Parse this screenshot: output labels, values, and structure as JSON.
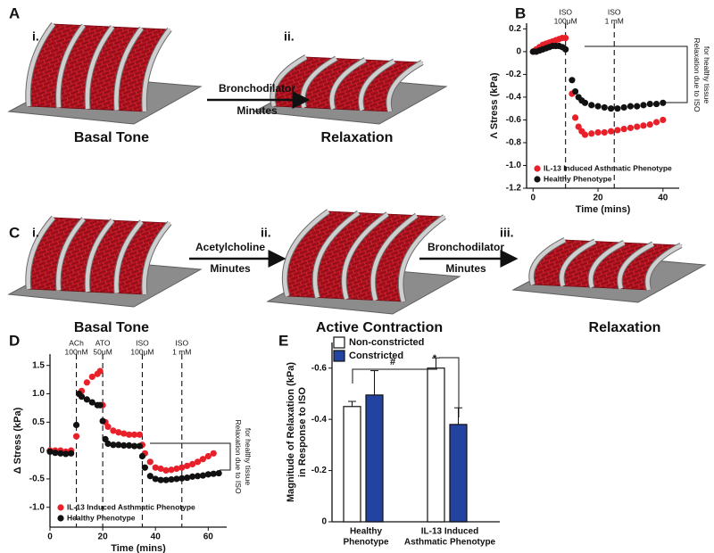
{
  "diagrams": {
    "A": {
      "label": "A",
      "steps": [
        "i.",
        "ii."
      ],
      "arrows": [
        {
          "top": "Bronchodilator",
          "bottom": "Minutes"
        }
      ],
      "captions": [
        "Basal Tone",
        "Relaxation"
      ]
    },
    "C": {
      "label": "C",
      "steps": [
        "i.",
        "ii.",
        "iii."
      ],
      "arrows": [
        {
          "top": "Acetylcholine",
          "bottom": "Minutes"
        },
        {
          "top": "Bronchodilator",
          "bottom": "Minutes"
        }
      ],
      "captions": [
        "Basal Tone",
        "Active Contraction",
        "Relaxation"
      ]
    }
  },
  "chart_data": [
    {
      "type": "scatter",
      "panel_label": "B",
      "xlabel": "Time (mins)",
      "ylabel": "Λ Stress (kPa)",
      "x": [
        0,
        1,
        2,
        3,
        4,
        5,
        6,
        7,
        8,
        9,
        10,
        12,
        13,
        14,
        15,
        16,
        18,
        20,
        22,
        24,
        26,
        28,
        30,
        32,
        34,
        36,
        38,
        40
      ],
      "series": [
        {
          "name": "IL-13 Induced Asthmatic Phenotype",
          "color": "#e8202a",
          "values": [
            0,
            0.02,
            0.04,
            0.06,
            0.07,
            0.08,
            0.09,
            0.1,
            0.11,
            0.12,
            0.12,
            -0.37,
            -0.58,
            -0.66,
            -0.7,
            -0.73,
            -0.72,
            -0.71,
            -0.71,
            -0.7,
            -0.69,
            -0.68,
            -0.67,
            -0.66,
            -0.65,
            -0.64,
            -0.62,
            -0.6
          ]
        },
        {
          "name": "Healthy Phenotype",
          "color": "#111111",
          "values": [
            0,
            0,
            0.01,
            0.02,
            0.03,
            0.04,
            0.05,
            0.05,
            0.05,
            0.04,
            0.02,
            -0.25,
            -0.35,
            -0.4,
            -0.43,
            -0.45,
            -0.47,
            -0.48,
            -0.49,
            -0.5,
            -0.5,
            -0.49,
            -0.48,
            -0.48,
            -0.47,
            -0.46,
            -0.46,
            -0.45
          ]
        }
      ],
      "xlim": [
        -2,
        45
      ],
      "ylim": [
        -1.2,
        0.25
      ],
      "xticks": [
        0,
        20,
        40
      ],
      "yticks": [
        0.2,
        0,
        -0.2,
        -0.4,
        -0.6,
        -0.8,
        {
          "value": -1,
          "label": "-1.0"
        },
        -1.2
      ],
      "events": [
        {
          "x": 10,
          "label": [
            "ISO",
            "100μM"
          ]
        },
        {
          "x": 25,
          "label": [
            "ISO",
            "1 mM"
          ]
        }
      ],
      "bracket": [
        "Relaxation due to ISO",
        "for healthy tissue"
      ],
      "legend": "lower left"
    },
    {
      "type": "scatter",
      "panel_label": "D",
      "xlabel": "Time (mins)",
      "ylabel": "Δ Stress (kPa)",
      "x": [
        0,
        2,
        4,
        6,
        8,
        10,
        11,
        12,
        14,
        16,
        18,
        19,
        20,
        21,
        22,
        24,
        26,
        28,
        30,
        32,
        34,
        35,
        36,
        38,
        40,
        42,
        44,
        46,
        48,
        50,
        52,
        54,
        56,
        58,
        60,
        62,
        64
      ],
      "series": [
        {
          "name": "IL-13 Induced Asthmatic Phenotype",
          "color": "#e8202a",
          "values": [
            0,
            0,
            0,
            -0.02,
            0,
            0.25,
            1.0,
            1.05,
            1.2,
            1.3,
            1.35,
            1.4,
            0.8,
            0.5,
            0.42,
            0.35,
            0.32,
            0.3,
            0.28,
            0.28,
            0.28,
            0.1,
            -0.05,
            -0.2,
            -0.3,
            -0.32,
            -0.35,
            -0.34,
            -0.32,
            -0.3,
            -0.27,
            -0.24,
            -0.2,
            -0.15,
            -0.1,
            -0.05,
            null
          ]
        },
        {
          "name": "Healthy Phenotype",
          "color": "#111111",
          "values": [
            -0.02,
            -0.04,
            -0.05,
            -0.06,
            -0.05,
            0.45,
            1.0,
            0.95,
            0.9,
            0.85,
            0.8,
            0.8,
            0.52,
            0.2,
            0.12,
            0.1,
            0.1,
            0.09,
            0.09,
            0.08,
            0.08,
            -0.1,
            -0.3,
            -0.45,
            -0.5,
            -0.52,
            -0.52,
            -0.51,
            -0.5,
            -0.49,
            -0.48,
            -0.46,
            -0.45,
            -0.44,
            -0.42,
            -0.41,
            -0.4
          ]
        }
      ],
      "xlim": [
        0,
        67
      ],
      "ylim": [
        -1.35,
        1.7
      ],
      "xticks": [
        0,
        20,
        40,
        60
      ],
      "yticks": [
        1.5,
        {
          "value": 1,
          "label": "1.0"
        },
        0.5,
        0,
        -0.5,
        {
          "value": -1,
          "label": "-1.0"
        }
      ],
      "events": [
        {
          "x": 10,
          "label": [
            "ACh",
            "100nM"
          ]
        },
        {
          "x": 20,
          "label": [
            "ATO",
            "50μM"
          ]
        },
        {
          "x": 35,
          "label": [
            "ISO",
            "100μM"
          ]
        },
        {
          "x": 50,
          "label": [
            "ISO",
            "1 mM"
          ]
        }
      ],
      "bracket": [
        "Relaxation due to ISO",
        "for healthy tissue"
      ],
      "legend": "lower left"
    },
    {
      "type": "bar",
      "panel_label": "E",
      "ylabel": [
        "Magnitude of Relaxation (kPa)",
        "in Response to ISO"
      ],
      "categories": [
        [
          "Healthy",
          "Phenotype"
        ],
        [
          "IL-13 Induced",
          "Asthmatic Phenotype"
        ]
      ],
      "series": [
        {
          "name": "Non-constricted",
          "color": "#ffffff",
          "values": [
            -0.45,
            -0.6
          ],
          "errors": [
            0.02,
            0.04
          ]
        },
        {
          "name": "Constricted",
          "color": "#2244a0",
          "values": [
            -0.495,
            -0.38
          ],
          "errors": [
            0.095,
            0.065
          ]
        }
      ],
      "ylim": [
        0,
        -0.7
      ],
      "yticks": [
        0,
        -0.2,
        -0.4,
        -0.6
      ],
      "significance": [
        "#",
        "*"
      ],
      "legend": "upper left"
    }
  ]
}
